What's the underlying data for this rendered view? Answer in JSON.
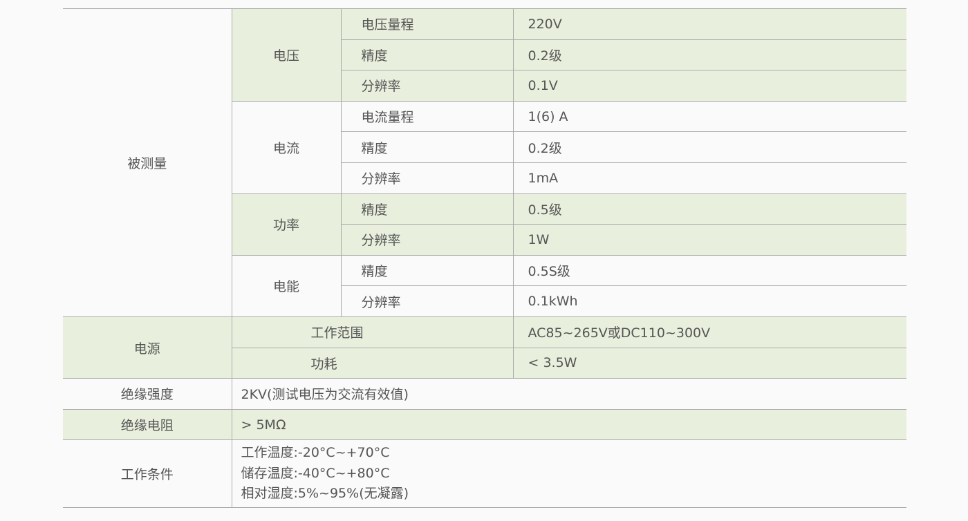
{
  "measured": {
    "label": "被测量",
    "voltage": {
      "label": "电压",
      "rows": [
        [
          "电压量程",
          "220V"
        ],
        [
          "精度",
          "0.2级"
        ],
        [
          "分辨率",
          "0.1V"
        ]
      ]
    },
    "current": {
      "label": "电流",
      "rows": [
        [
          "电流量程",
          "1(6) A"
        ],
        [
          "精度",
          "0.2级"
        ],
        [
          "分辨率",
          "1mA"
        ]
      ]
    },
    "power": {
      "label": "功率",
      "rows": [
        [
          "精度",
          "0.5级"
        ],
        [
          "分辨率",
          "1W"
        ]
      ]
    },
    "energy": {
      "label": "电能",
      "rows": [
        [
          "精度",
          "0.5S级"
        ],
        [
          "分辨率",
          "0.1kWh"
        ]
      ]
    }
  },
  "supply": {
    "label": "电源",
    "rows": [
      [
        "工作范围",
        "AC85~265V或DC110~300V"
      ],
      [
        "功耗",
        "< 3.5W"
      ]
    ]
  },
  "insulation_strength": {
    "label": "绝缘强度",
    "value": "2KV(测试电压为交流有效值)"
  },
  "insulation_resistance": {
    "label": "绝缘电阻",
    "value": "> 5MΩ"
  },
  "working_conditions": {
    "label": "工作条件",
    "lines": [
      "工作温度:-20°C~+70°C",
      "储存温度:-40°C~+80°C",
      "相对湿度:5%~95%(无凝露)"
    ]
  },
  "colors": {
    "highlight": "#e8f0dd",
    "border": "#aaaaaa",
    "text": "#555555"
  }
}
